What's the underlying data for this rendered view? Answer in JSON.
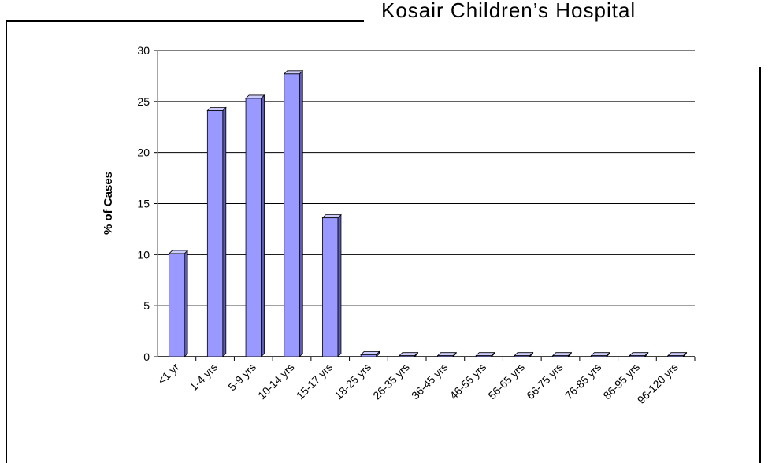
{
  "chart_data": {
    "type": "bar",
    "title": "Kosair Children’s Hospital",
    "y_label": "% of Cases",
    "categories": [
      "<1 yr",
      "1-4 yrs",
      "5-9 yrs",
      "10-14 yrs",
      "15-17 yrs",
      "18-25 yrs",
      "26-35 yrs",
      "36-45 yrs",
      "46-55 yrs",
      "56-65 yrs",
      "66-75 yrs",
      "76-85 yrs",
      "86-95 yrs",
      "96-120 yrs"
    ],
    "values": [
      10.1,
      24.1,
      25.3,
      27.7,
      13.6,
      0.2,
      0.1,
      0.1,
      0.1,
      0.1,
      0.1,
      0.1,
      0.1,
      0.1
    ],
    "color": "#9999ff",
    "ylim": [
      0,
      30
    ],
    "yticks": [
      0,
      5,
      10,
      15,
      20,
      25,
      30
    ],
    "grid": true
  }
}
